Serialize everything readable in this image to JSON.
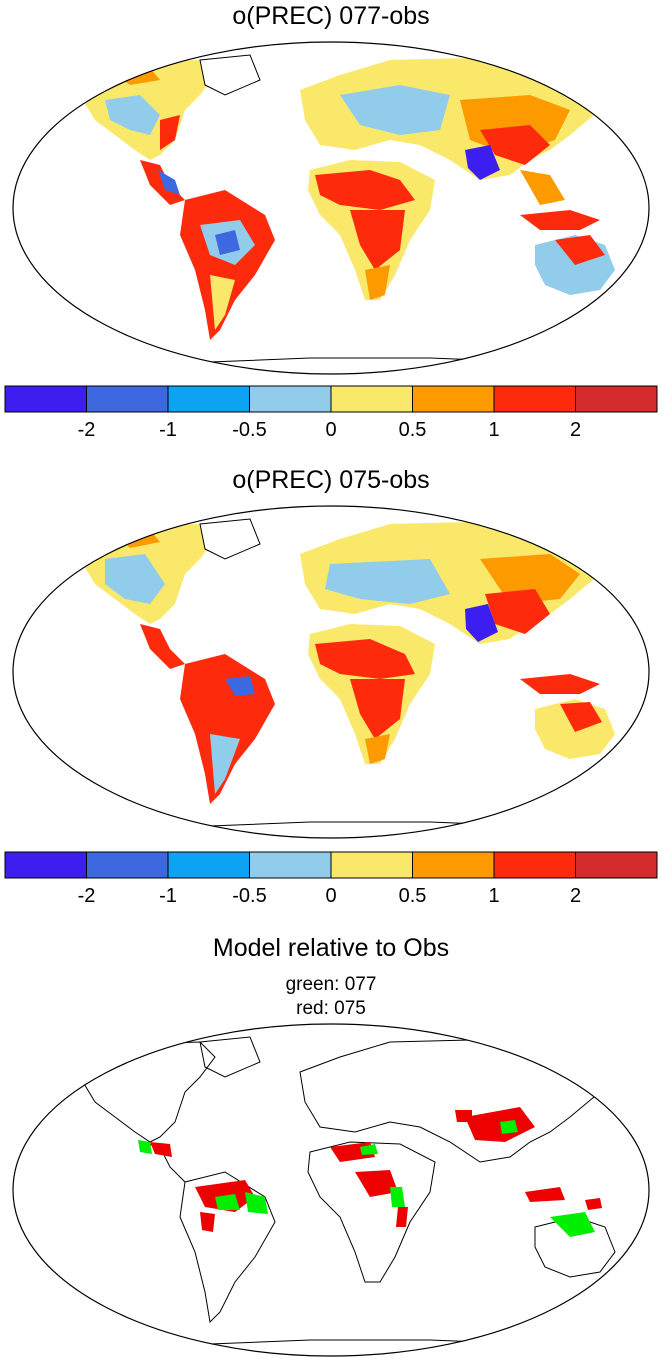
{
  "panels": [
    {
      "title": "o(PREC) 077-obs"
    },
    {
      "title": "o(PREC) 075-obs"
    }
  ],
  "colorbar": {
    "colors": [
      "#3c1ff0",
      "#3d68e0",
      "#0ea2f2",
      "#92cceb",
      "#fae86a",
      "#fc9a00",
      "#fd2b0c",
      "#d42c2c"
    ],
    "tick_labels": [
      "-2",
      "-1",
      "-0.5",
      "0",
      "0.5",
      "1",
      "2"
    ]
  },
  "comparison": {
    "title": "Model relative to Obs",
    "legend_green": "green: 077",
    "legend_red": "red: 075",
    "colors": {
      "green": "#00ee00",
      "red": "#ee0000"
    }
  }
}
